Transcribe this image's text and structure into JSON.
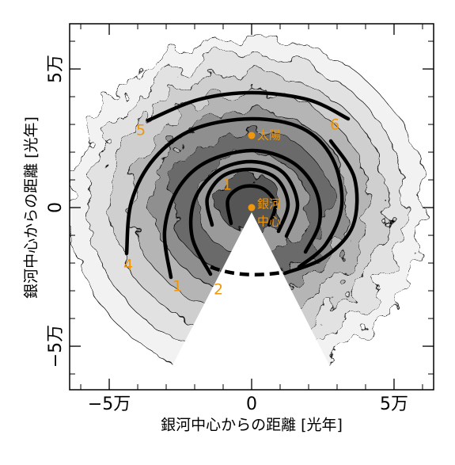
{
  "chart_data": {
    "type": "scatter",
    "xlabel": "銀河中心からの距離 [光年]",
    "ylabel": "銀河中心からの距離 [光年]",
    "xlim": [
      -63900,
      63900
    ],
    "ylim": [
      -65700,
      66300
    ],
    "xticks": [
      {
        "value": -50000,
        "label": "−5万"
      },
      0,
      {
        "value": 50000,
        "label": "5万"
      }
    ],
    "yticks": [
      {
        "value": -50000,
        "label": "−5万"
      },
      0,
      {
        "value": 50000,
        "label": "5万"
      }
    ],
    "xminorticks": [
      -60000,
      -50000,
      -40000,
      -30000,
      -20000,
      -10000,
      0,
      10000,
      20000,
      30000,
      40000,
      50000,
      60000
    ],
    "yminorticks": [
      -60000,
      -50000,
      -40000,
      -30000,
      -20000,
      -10000,
      0,
      10000,
      20000,
      30000,
      40000,
      50000,
      60000
    ],
    "color": "#f0960a",
    "points": [
      {
        "label": "太陽",
        "x": 0,
        "y": 26000
      },
      {
        "label": [
          "銀河",
          "中心"
        ],
        "x": 0,
        "y": 0
      }
    ],
    "arm_labels": [
      "5",
      "6",
      "1",
      "1",
      "4",
      "2"
    ]
  }
}
